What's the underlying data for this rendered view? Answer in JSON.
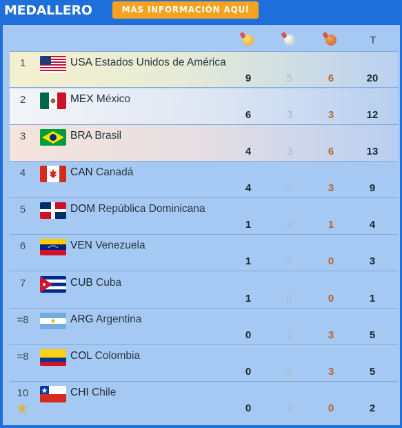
{
  "header": {
    "title": "MEDALLERO",
    "more_button": "MÁS INFORMACIÓN AQUÍ"
  },
  "columns": {
    "gold": "gold-medal-icon",
    "silver": "silver-medal-icon",
    "bronze": "bronze-medal-icon",
    "total": "T"
  },
  "rows": [
    {
      "rank": "1",
      "code": "USA",
      "name": "Estados Unidos de América",
      "gold": "9",
      "silver": "5",
      "bronze": "6",
      "total": "20"
    },
    {
      "rank": "2",
      "code": "MEX",
      "name": "México",
      "gold": "6",
      "silver": "3",
      "bronze": "3",
      "total": "12"
    },
    {
      "rank": "3",
      "code": "BRA",
      "name": "Brasil",
      "gold": "4",
      "silver": "3",
      "bronze": "6",
      "total": "13"
    },
    {
      "rank": "4",
      "code": "CAN",
      "name": "Canadá",
      "gold": "4",
      "silver": "2",
      "bronze": "3",
      "total": "9"
    },
    {
      "rank": "5",
      "code": "DOM",
      "name": "República Dominicana",
      "gold": "1",
      "silver": "2",
      "bronze": "1",
      "total": "4"
    },
    {
      "rank": "6",
      "code": "VEN",
      "name": "Venezuela",
      "gold": "1",
      "silver": "2",
      "bronze": "0",
      "total": "3"
    },
    {
      "rank": "7",
      "code": "CUB",
      "name": "Cuba",
      "gold": "1",
      "silver": "0",
      "bronze": "0",
      "total": "1"
    },
    {
      "rank": "=8",
      "code": "ARG",
      "name": "Argentina",
      "gold": "0",
      "silver": "2",
      "bronze": "3",
      "total": "5"
    },
    {
      "rank": "=8",
      "code": "COL",
      "name": "Colombia",
      "gold": "0",
      "silver": "2",
      "bronze": "3",
      "total": "5"
    },
    {
      "rank": "10",
      "code": "CHI",
      "name": "Chile",
      "gold": "0",
      "silver": "2",
      "bronze": "0",
      "total": "2"
    }
  ]
}
